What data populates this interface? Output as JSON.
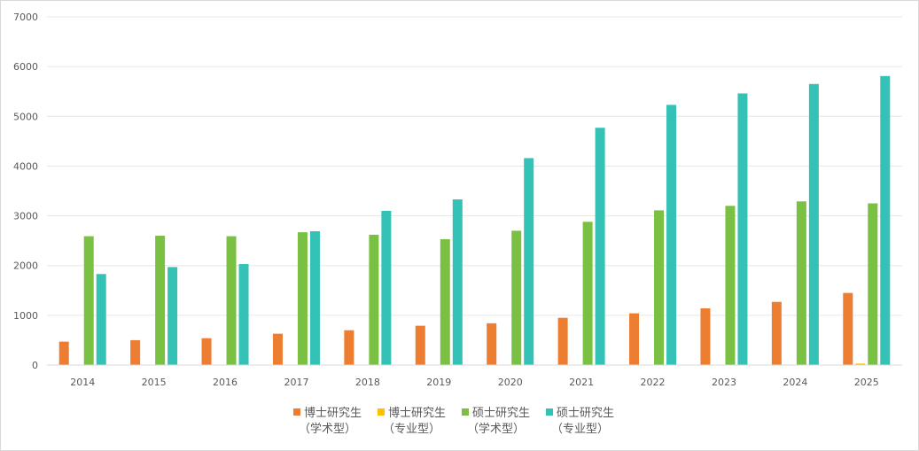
{
  "chart_data": {
    "type": "bar",
    "categories": [
      "2014",
      "2015",
      "2016",
      "2017",
      "2018",
      "2019",
      "2020",
      "2021",
      "2022",
      "2023",
      "2024",
      "2025"
    ],
    "ylim": [
      0,
      7000
    ],
    "yticks": [
      "0",
      "1000",
      "2000",
      "3000",
      "4000",
      "5000",
      "6000",
      "7000"
    ],
    "grid": true,
    "legend_position": "bottom",
    "series": [
      {
        "name": "博士研究生（学术型）",
        "name_line1": "博士研究生",
        "name_line2": "（学术型）",
        "color": "#ED7D31",
        "values": [
          470,
          500,
          540,
          630,
          700,
          790,
          840,
          950,
          1040,
          1140,
          1270,
          1450
        ]
      },
      {
        "name": "博士研究生（专业型）",
        "name_line1": "博士研究生",
        "name_line2": "（专业型）",
        "color": "#FFC000",
        "values": [
          0,
          0,
          0,
          0,
          0,
          0,
          0,
          0,
          0,
          0,
          10,
          30
        ]
      },
      {
        "name": "硕士研究生（学术型）",
        "name_line1": "硕士研究生",
        "name_line2": "（学术型）",
        "color": "#7AC143",
        "values": [
          2590,
          2600,
          2590,
          2670,
          2620,
          2530,
          2700,
          2880,
          3110,
          3200,
          3290,
          3250
        ]
      },
      {
        "name": "硕士研究生（专业型）",
        "name_line1": "硕士研究生",
        "name_line2": "（专业型）",
        "color": "#34C2B6",
        "values": [
          1830,
          1970,
          2030,
          2690,
          3100,
          3330,
          4160,
          4770,
          5230,
          5460,
          5650,
          5810
        ]
      }
    ]
  }
}
